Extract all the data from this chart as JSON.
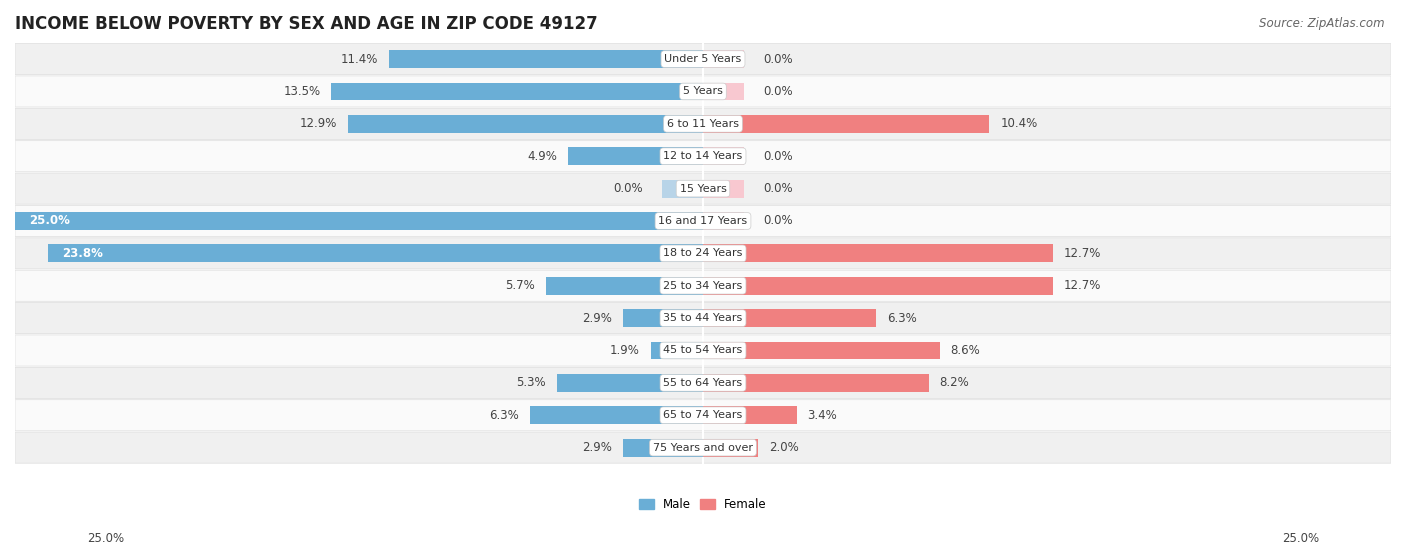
{
  "title": "INCOME BELOW POVERTY BY SEX AND AGE IN ZIP CODE 49127",
  "source": "Source: ZipAtlas.com",
  "categories": [
    "Under 5 Years",
    "5 Years",
    "6 to 11 Years",
    "12 to 14 Years",
    "15 Years",
    "16 and 17 Years",
    "18 to 24 Years",
    "25 to 34 Years",
    "35 to 44 Years",
    "45 to 54 Years",
    "55 to 64 Years",
    "65 to 74 Years",
    "75 Years and over"
  ],
  "male_values": [
    11.4,
    13.5,
    12.9,
    4.9,
    0.0,
    25.0,
    23.8,
    5.7,
    2.9,
    1.9,
    5.3,
    6.3,
    2.9
  ],
  "female_values": [
    0.0,
    0.0,
    10.4,
    0.0,
    0.0,
    0.0,
    12.7,
    12.7,
    6.3,
    8.6,
    8.2,
    3.4,
    2.0
  ],
  "male_color": "#6aaed6",
  "female_color": "#f08080",
  "male_color_light": "#b8d4e8",
  "female_color_light": "#f8c8d0",
  "male_label": "Male",
  "female_label": "Female",
  "xlim": 25.0,
  "bar_height": 0.55,
  "background_color": "#ffffff",
  "row_even_color": "#f0f0f0",
  "row_odd_color": "#fafafa",
  "title_fontsize": 12,
  "label_fontsize": 8.5,
  "cat_fontsize": 8.0,
  "axis_fontsize": 8.5,
  "source_fontsize": 8.5
}
